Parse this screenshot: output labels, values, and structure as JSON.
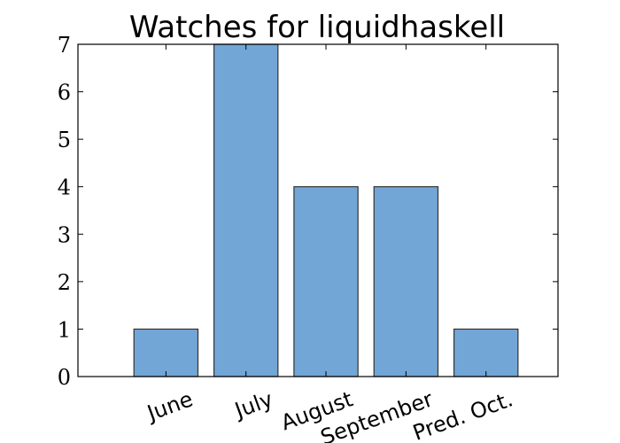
{
  "colors": {
    "bar_fill": "#72a6d6",
    "bar_stroke": "#333333",
    "axis": "#000000",
    "background": "#ffffff"
  },
  "chart_data": {
    "type": "bar",
    "title": "Watches for liquidhaskell",
    "xlabel": "",
    "ylabel": "",
    "categories": [
      "June",
      "July",
      "August",
      "September",
      "Pred. Oct."
    ],
    "values": [
      1,
      7,
      4,
      4,
      1
    ],
    "ylim": [
      0,
      7
    ],
    "yticks": [
      0,
      1,
      2,
      3,
      4,
      5,
      6,
      7
    ],
    "grid": false,
    "legend": "none"
  }
}
